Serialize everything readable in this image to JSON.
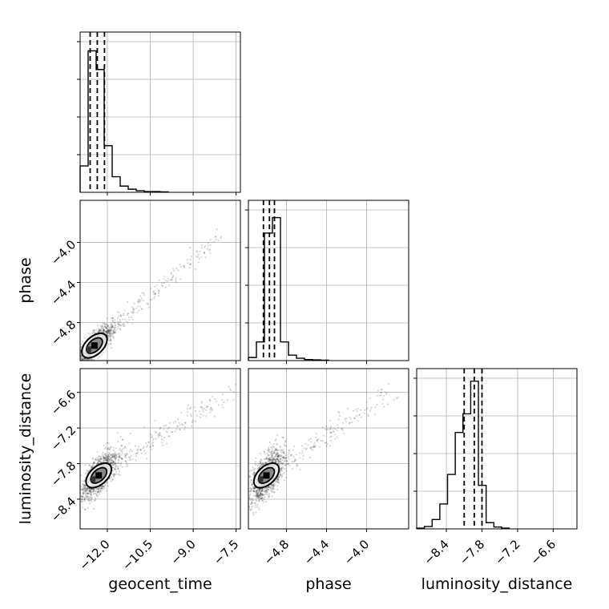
{
  "chart_data": {
    "type": "corner",
    "parameters": [
      "geocent_time",
      "phase",
      "luminosity_distance"
    ],
    "axis_labels": {
      "geocent_time": "geocent_time",
      "phase": "phase",
      "luminosity_distance": "luminosity_distance"
    },
    "ranges": {
      "geocent_time": [
        -12.95,
        -7.35
      ],
      "phase": [
        -5.18,
        -3.58
      ],
      "luminosity_distance": [
        -8.9,
        -6.2
      ]
    },
    "ticks": {
      "geocent_time": [
        {
          "value": -12.0,
          "label": "−12.0"
        },
        {
          "value": -10.5,
          "label": "−10.5"
        },
        {
          "value": -9.0,
          "label": "−9.0"
        },
        {
          "value": -7.5,
          "label": "−7.5"
        }
      ],
      "phase": [
        {
          "value": -4.8,
          "label": "−4.8"
        },
        {
          "value": -4.4,
          "label": "−4.4"
        },
        {
          "value": -4.0,
          "label": "−4.0"
        }
      ],
      "luminosity_distance": [
        {
          "value": -8.4,
          "label": "−8.4"
        },
        {
          "value": -7.8,
          "label": "−7.8"
        },
        {
          "value": -7.2,
          "label": "−7.2"
        },
        {
          "value": -6.6,
          "label": "−6.6"
        }
      ]
    },
    "quantiles": {
      "geocent_time": [
        -12.6,
        -12.35,
        -12.1
      ],
      "phase": [
        -5.03,
        -4.97,
        -4.92
      ],
      "luminosity_distance": [
        -8.1,
        -7.93,
        -7.8
      ]
    },
    "histograms": {
      "geocent_time": {
        "edges": [
          -12.95,
          -12.67,
          -12.39,
          -12.11,
          -11.83,
          -11.55,
          -11.27,
          -10.99,
          -10.71,
          -10.43,
          -10.15,
          -9.87
        ],
        "counts": [
          0.17,
          0.91,
          0.79,
          0.3,
          0.1,
          0.04,
          0.02,
          0.01,
          0.005,
          0.005,
          0.003
        ]
      },
      "phase": {
        "edges": [
          -5.18,
          -5.1,
          -5.02,
          -4.94,
          -4.86,
          -4.78,
          -4.7,
          -4.62,
          -4.54,
          -4.46,
          -4.38
        ],
        "counts": [
          0.02,
          0.12,
          0.82,
          0.92,
          0.12,
          0.035,
          0.015,
          0.007,
          0.005,
          0.003
        ]
      },
      "luminosity_distance": {
        "edges": [
          -8.9,
          -8.77,
          -8.64,
          -8.51,
          -8.38,
          -8.25,
          -8.12,
          -7.99,
          -7.86,
          -7.73,
          -7.6,
          -7.47,
          -7.34
        ],
        "counts": [
          0.005,
          0.015,
          0.06,
          0.16,
          0.35,
          0.62,
          0.74,
          0.95,
          0.28,
          0.04,
          0.012,
          0.005
        ]
      }
    },
    "joint": {
      "geocent_time__phase": {
        "center": [
          -12.45,
          -5.03
        ],
        "slope": 0.27,
        "spread": [
          0.45,
          0.1
        ],
        "tail_to": [
          -8.0,
          -3.9
        ]
      },
      "geocent_time__luminosity_distance": {
        "center": [
          -12.3,
          -8.0
        ],
        "slope": 0.45,
        "spread": [
          0.5,
          0.25
        ],
        "tail_to": [
          -7.6,
          -6.55
        ]
      },
      "phase__luminosity_distance": {
        "center": [
          -5.0,
          -8.0
        ],
        "slope": 1.6,
        "spread": [
          0.12,
          0.28
        ],
        "tail_to": [
          -3.75,
          -6.6
        ]
      }
    },
    "grid": true
  }
}
